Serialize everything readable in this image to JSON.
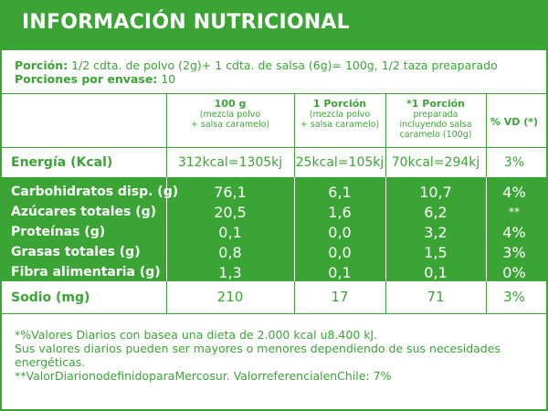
{
  "title": "INFORMACIÓN NUTRICIONAL",
  "portion": {
    "label1": "Porción:",
    "value1": " 1/2 cdta. de polvo (2g)+ 1 cdta. de salsa (6g)= 100g, 1/2 taza preaparado",
    "label2": "Porciones por envase:",
    "value2": "  10"
  },
  "columns": {
    "c1_title": "100 g",
    "c1_sub": "(mezcla polvo\n+ salsa caramelo)",
    "c2_title": "1 Porción",
    "c2_sub": "(mezcla polvo\n+ salsa caramelo)",
    "c3_title": "*1 Porción",
    "c3_sub": "preparada\nincluyendo salsa\ncaramelo (100g)",
    "c4_title": "% VD (*)"
  },
  "energy": {
    "name": "Energía (Kcal)",
    "v1": "312kcal=1305kj",
    "v2": "25kcal=105kj",
    "v3": "70kcal=294kj",
    "v4": "3%"
  },
  "rows": [
    {
      "name": "Carbohidratos disp. (g)",
      "v1": "76,1",
      "v2": "6,1",
      "v3": "10,7",
      "v4": "4%"
    },
    {
      "name": "Azúcares totales (g)",
      "v1": "20,5",
      "v2": "1,6",
      "v3": "6,2",
      "v4": "**"
    },
    {
      "name": "Proteínas (g)",
      "v1": "0,1",
      "v2": "0,0",
      "v3": "3,2",
      "v4": "4%"
    },
    {
      "name": "Grasas totales (g)",
      "v1": "0,8",
      "v2": "0,0",
      "v3": "1,5",
      "v4": "3%"
    },
    {
      "name": "Fibra alimentaria (g)",
      "v1": "1,3",
      "v2": "0,1",
      "v3": "0,1",
      "v4": "0%"
    }
  ],
  "sodio": {
    "name": "Sodio (mg)",
    "v1": "210",
    "v2": "17",
    "v3": "71",
    "v4": "3%"
  },
  "footer": {
    "line1": "*%Valores Diarios con basea una dieta de 2.000 kcal u8.400 kJ.",
    "line2": "Sus valores diarios pueden ser mayores o menores dependiendo de sus necesidades energéticas.",
    "line3": "**ValorDiarionodefinidoparaMercosur. ValorreferencialenChile: 7%"
  },
  "colors": {
    "accent": "#3aa535"
  }
}
